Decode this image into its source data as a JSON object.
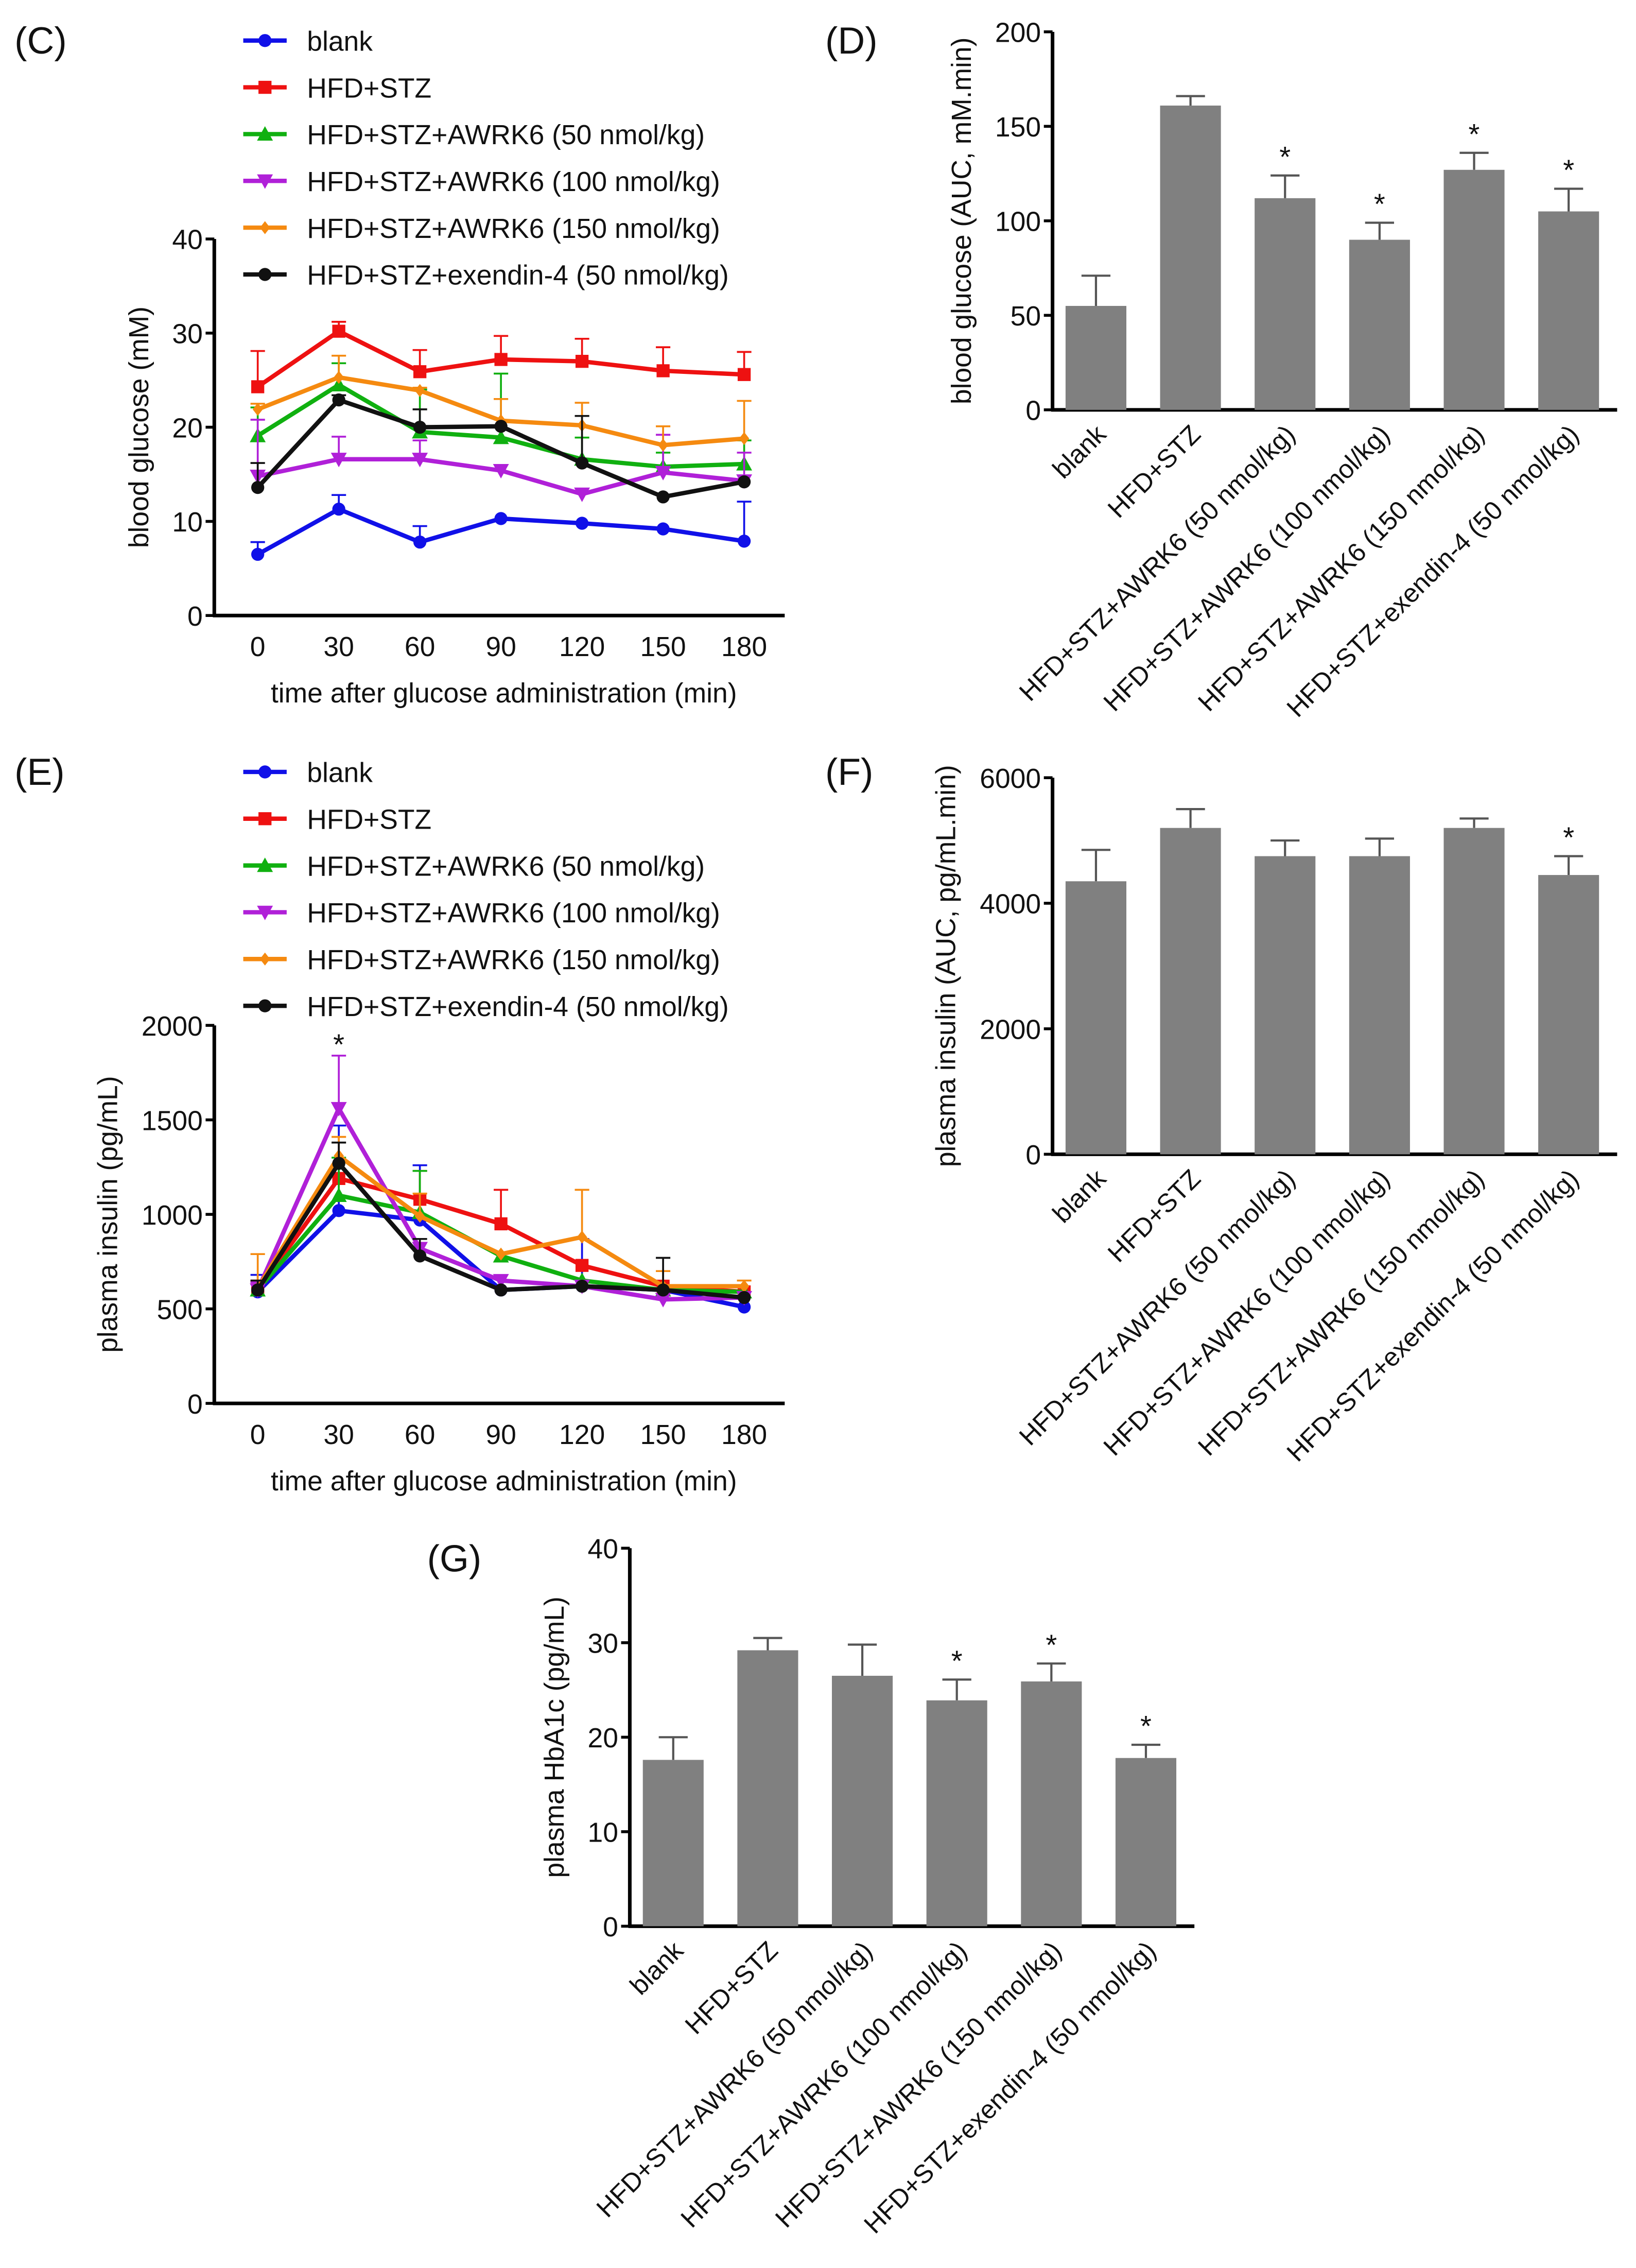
{
  "colors": {
    "blank": "#1010e8",
    "HFD+STZ": "#ee1111",
    "AWRK6_50": "#10b010",
    "AWRK6_100": "#b020d8",
    "AWRK6_150": "#f58a10",
    "exendin": "#111111",
    "bar": "#808080"
  },
  "chart_data": [
    {
      "panel": "(C)",
      "type": "line",
      "xlabel": "time after glucose administration (min)",
      "ylabel": "blood glucose (mM)",
      "x": [
        0,
        30,
        60,
        90,
        120,
        150,
        180
      ],
      "xticks": [
        "0",
        "30",
        "60",
        "90",
        "120",
        "150",
        "180"
      ],
      "ylim": [
        0,
        40
      ],
      "yticks": [
        "0",
        "10",
        "20",
        "30",
        "40"
      ],
      "legend": "top",
      "series": [
        {
          "name": "blank",
          "marker": "circle",
          "values": [
            6.5,
            11.3,
            7.8,
            10.3,
            9.8,
            9.2,
            7.9
          ],
          "err": [
            1.3,
            1.5,
            1.7,
            0,
            0,
            0,
            4.2
          ]
        },
        {
          "name": "HFD+STZ",
          "marker": "square",
          "values": [
            24.3,
            30.2,
            25.9,
            27.2,
            27.0,
            26.0,
            25.6
          ],
          "err": [
            3.8,
            1.0,
            2.3,
            2.5,
            2.4,
            2.5,
            2.4
          ]
        },
        {
          "name": "HFD+STZ+AWRK6 (50 nmol/kg)",
          "marker": "triangle-up",
          "values": [
            19.1,
            24.5,
            19.5,
            18.9,
            16.6,
            15.8,
            16.1
          ],
          "err": [
            3.0,
            2.3,
            4.5,
            6.8,
            2.3,
            1.5,
            2.5
          ]
        },
        {
          "name": "HFD+STZ+AWRK6 (100 nmol/kg)",
          "marker": "triangle-down",
          "values": [
            14.8,
            16.6,
            16.6,
            15.4,
            12.9,
            15.2,
            14.3
          ],
          "err": [
            6.0,
            2.4,
            2.0,
            0,
            0,
            4.0,
            3.0
          ]
        },
        {
          "name": "HFD+STZ+AWRK6 (150 nmol/kg)",
          "marker": "diamond",
          "values": [
            21.9,
            25.3,
            23.9,
            20.7,
            20.2,
            18.1,
            18.8
          ],
          "err": [
            0.6,
            2.3,
            0.3,
            2.3,
            2.4,
            2.0,
            4.0
          ]
        },
        {
          "name": "HFD+STZ+exendin-4 (50 nmol/kg)",
          "marker": "circle",
          "values": [
            13.6,
            22.9,
            20.0,
            20.1,
            16.2,
            12.6,
            14.2
          ],
          "err": [
            2.6,
            0.5,
            1.9,
            0,
            5.0,
            0,
            0
          ]
        }
      ],
      "annotations": []
    },
    {
      "panel": "(D)",
      "type": "bar",
      "ylabel": "blood glucose (AUC, mM.min)",
      "ylim": [
        0,
        200
      ],
      "yticks": [
        "0",
        "50",
        "100",
        "150",
        "200"
      ],
      "categories": [
        "blank",
        "HFD+STZ",
        "HFD+STZ+AWRK6 (50 nmol/kg)",
        "HFD+STZ+AWRK6 (100 nmol/kg)",
        "HFD+STZ+AWRK6 (150 nmol/kg)",
        "HFD+STZ+exendin-4 (50 nmol/kg)"
      ],
      "values": [
        55,
        161,
        112,
        90,
        127,
        105
      ],
      "err": [
        16,
        5,
        12,
        9,
        9,
        12
      ],
      "significance": [
        "",
        "",
        "*",
        "*",
        "*",
        "*"
      ]
    },
    {
      "panel": "(E)",
      "type": "line",
      "xlabel": "time after glucose administration (min)",
      "ylabel": "plasma insulin (pg/mL)",
      "x": [
        0,
        30,
        60,
        90,
        120,
        150,
        180
      ],
      "xticks": [
        "0",
        "30",
        "60",
        "90",
        "120",
        "150",
        "180"
      ],
      "ylim": [
        0,
        2000
      ],
      "yticks": [
        "0",
        "500",
        "1000",
        "1500",
        "2000"
      ],
      "legend": "top",
      "series": [
        {
          "name": "blank",
          "marker": "circle",
          "values": [
            590,
            1020,
            970,
            600,
            620,
            600,
            510
          ],
          "err": [
            90,
            450,
            290,
            0,
            250,
            0,
            0
          ]
        },
        {
          "name": "HFD+STZ",
          "marker": "square",
          "values": [
            600,
            1190,
            1080,
            950,
            730,
            620,
            590
          ],
          "err": [
            50,
            0,
            150,
            180,
            0,
            0,
            0
          ]
        },
        {
          "name": "HFD+STZ+AWRK6 (50 nmol/kg)",
          "marker": "triangle-up",
          "values": [
            600,
            1100,
            1010,
            780,
            650,
            600,
            590
          ],
          "err": [
            40,
            200,
            220,
            0,
            0,
            0,
            0
          ]
        },
        {
          "name": "HFD+STZ+AWRK6 (100 nmol/kg)",
          "marker": "triangle-down",
          "values": [
            600,
            1560,
            820,
            650,
            620,
            550,
            560
          ],
          "err": [
            40,
            280,
            0,
            0,
            0,
            0,
            0
          ]
        },
        {
          "name": "HFD+STZ+AWRK6 (150 nmol/kg)",
          "marker": "diamond",
          "values": [
            610,
            1310,
            990,
            790,
            880,
            620,
            620
          ],
          "err": [
            180,
            100,
            120,
            0,
            250,
            80,
            30
          ]
        },
        {
          "name": "HFD+STZ+exendin-4 (50 nmol/kg)",
          "marker": "circle",
          "values": [
            600,
            1270,
            780,
            600,
            620,
            600,
            560
          ],
          "err": [
            50,
            110,
            90,
            0,
            0,
            170,
            0
          ]
        }
      ],
      "annotations": [
        {
          "x": 30,
          "text": "*"
        }
      ]
    },
    {
      "panel": "(F)",
      "type": "bar",
      "ylabel": "plasma insulin (AUC, pg/mL.min)",
      "ylim": [
        0,
        6000
      ],
      "yticks": [
        "0",
        "2000",
        "4000",
        "6000"
      ],
      "categories": [
        "blank",
        "HFD+STZ",
        "HFD+STZ+AWRK6 (50 nmol/kg)",
        "HFD+STZ+AWRK6 (100 nmol/kg)",
        "HFD+STZ+AWRK6 (150 nmol/kg)",
        "HFD+STZ+exendin-4 (50 nmol/kg)"
      ],
      "values": [
        4350,
        5200,
        4750,
        4750,
        5200,
        4450
      ],
      "err": [
        500,
        300,
        250,
        280,
        150,
        300
      ],
      "significance": [
        "",
        "",
        "",
        "",
        "",
        "*"
      ]
    },
    {
      "panel": "(G)",
      "type": "bar",
      "ylabel": "plasma HbA1c (pg/mL)",
      "ylim": [
        0,
        40
      ],
      "yticks": [
        "0",
        "10",
        "20",
        "30",
        "40"
      ],
      "categories": [
        "blank",
        "HFD+STZ",
        "HFD+STZ+AWRK6 (50 nmol/kg)",
        "HFD+STZ+AWRK6 (100 nmol/kg)",
        "HFD+STZ+AWRK6 (150 nmol/kg)",
        "HFD+STZ+exendin-4 (50 nmol/kg)"
      ],
      "values": [
        17.6,
        29.2,
        26.5,
        23.9,
        25.9,
        17.8
      ],
      "err": [
        2.4,
        1.3,
        3.3,
        2.2,
        1.9,
        1.4
      ],
      "significance": [
        "",
        "",
        "",
        "*",
        "*",
        "*"
      ]
    }
  ]
}
